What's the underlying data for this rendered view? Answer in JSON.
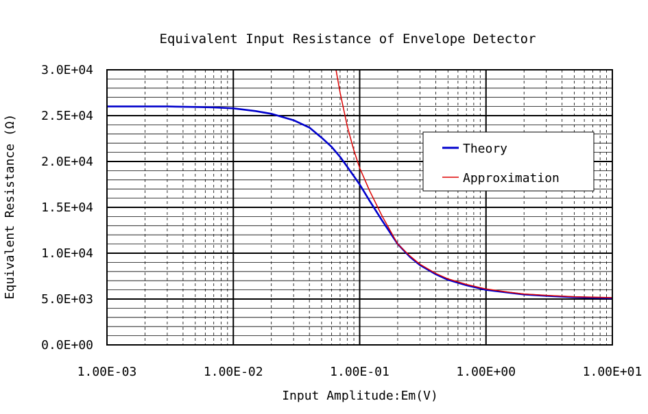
{
  "chart_data": {
    "type": "line",
    "title": "Equivalent Input Resistance of Envelope Detector",
    "xlabel": "Input Amplitude:Em(V)",
    "ylabel": "Equivalent Resistance (Ω)",
    "x_scale": "log",
    "xlim": [
      0.001,
      10
    ],
    "ylim": [
      0,
      30000
    ],
    "x_ticks": [
      0.001,
      0.01,
      0.1,
      1,
      10
    ],
    "x_tick_labels": [
      "1.00E-03",
      "1.00E-02",
      "1.00E-01",
      "1.00E+00",
      "1.00E+01"
    ],
    "y_ticks": [
      0,
      5000,
      10000,
      15000,
      20000,
      25000,
      30000
    ],
    "y_tick_labels": [
      "0.0E+00",
      "5.0E+03",
      "1.0E+04",
      "1.5E+04",
      "2.0E+04",
      "2.5E+04",
      "3.0E+04"
    ],
    "y_minor_step": 1000,
    "grid": true,
    "legend_position": "right",
    "series": [
      {
        "name": "Theory",
        "color": "#0000cc",
        "x": [
          0.001,
          0.002,
          0.003,
          0.005,
          0.007,
          0.01,
          0.015,
          0.02,
          0.03,
          0.04,
          0.05,
          0.06,
          0.07,
          0.08,
          0.1,
          0.12,
          0.15,
          0.2,
          0.25,
          0.3,
          0.4,
          0.5,
          0.7,
          1.0,
          1.5,
          2,
          3,
          5,
          7,
          10
        ],
        "y": [
          26000,
          26000,
          26000,
          25950,
          25900,
          25800,
          25500,
          25200,
          24500,
          23700,
          22600,
          21600,
          20500,
          19400,
          17500,
          15700,
          13600,
          11000,
          9600,
          8700,
          7700,
          7100,
          6500,
          6000,
          5700,
          5500,
          5350,
          5200,
          5150,
          5100
        ]
      },
      {
        "name": "Approximation",
        "color": "#dd0000",
        "x": [
          0.065,
          0.07,
          0.08,
          0.09,
          0.1,
          0.12,
          0.15,
          0.2,
          0.25,
          0.3,
          0.4,
          0.5,
          0.7,
          1.0,
          1.5,
          2,
          3,
          5,
          7,
          10
        ],
        "y": [
          30000,
          27500,
          23800,
          21200,
          19300,
          16800,
          14100,
          11000,
          9700,
          8800,
          7800,
          7200,
          6600,
          6100,
          5750,
          5550,
          5400,
          5250,
          5200,
          5150
        ]
      }
    ]
  }
}
